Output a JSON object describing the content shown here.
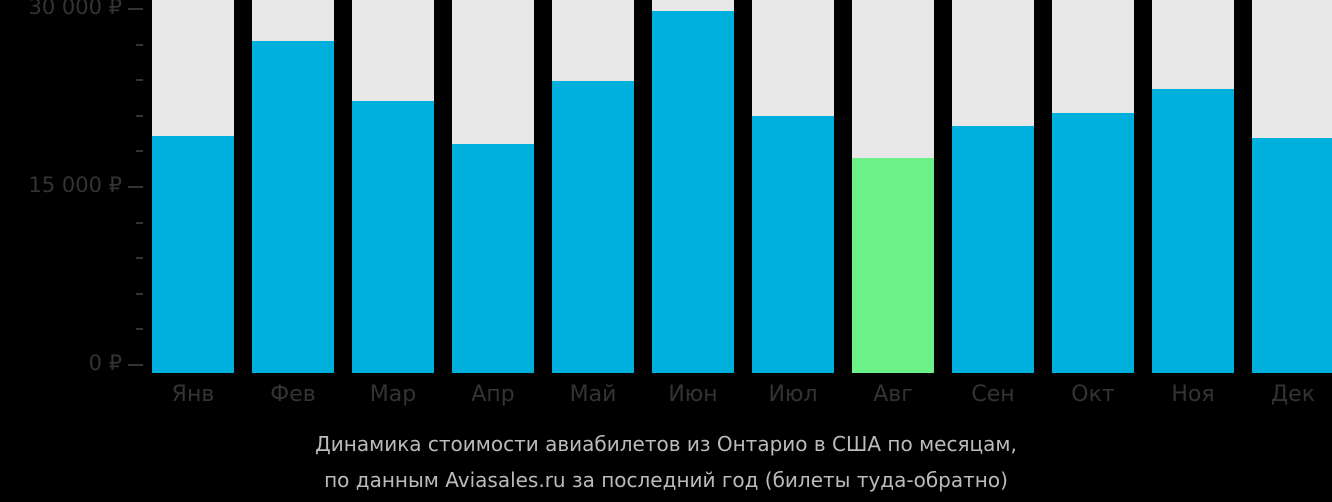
{
  "chart_data": {
    "type": "bar",
    "title": "Динамика стоимости авиабилетов из Онтарио в США по месяцам, по данным Aviasales.ru за последний год (билеты туда-обратно)",
    "xlabel": "",
    "ylabel": "",
    "categories": [
      "Янв",
      "Фев",
      "Мар",
      "Апр",
      "Май",
      "Июн",
      "Июл",
      "Авг",
      "Сен",
      "Окт",
      "Ноя",
      "Дек"
    ],
    "values": [
      19300,
      27300,
      22250,
      18600,
      23900,
      29800,
      21000,
      17450,
      20150,
      21250,
      23250,
      19150
    ],
    "ylim": [
      0,
      30000
    ],
    "yticks": [
      {
        "value": 30000,
        "label": "30 000 ₽"
      },
      {
        "value": 15000,
        "label": "15 000 ₽"
      },
      {
        "value": 0,
        "label": "0 ₽"
      }
    ],
    "minor_tick_step": 3000,
    "highlight_index": 7,
    "colors": {
      "bar": "#00b0dc",
      "highlight": "#6cf088",
      "bar_background": "#e8e8e8",
      "background": "#000000"
    },
    "grid": false,
    "legend": null
  },
  "caption": {
    "line1": "Динамика стоимости авиабилетов из Онтарио в США по месяцам,",
    "line2": "по данным Aviasales.ru за последний год (билеты туда-обратно)"
  }
}
